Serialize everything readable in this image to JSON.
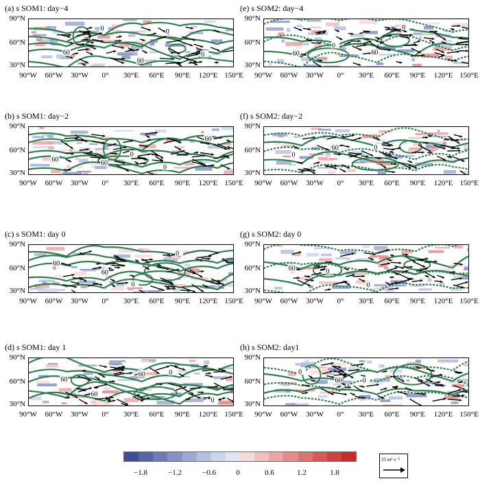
{
  "panels": [
    {
      "id": "a",
      "title": "(a) s SOM1: day−4",
      "contour_labels": [
        "60",
        "0",
        "60",
        "0",
        "0"
      ]
    },
    {
      "id": "e",
      "title": "(e) s SOM2: day−4",
      "contour_labels": [
        "60",
        "0",
        "60",
        "0"
      ]
    },
    {
      "id": "b",
      "title": "(b) s SOM1: day−2",
      "contour_labels": [
        "60",
        "60",
        "0",
        "0",
        "60"
      ]
    },
    {
      "id": "f",
      "title": "(f) s SOM2: day−2",
      "contour_labels": [
        "0",
        "60",
        "0"
      ]
    },
    {
      "id": "c",
      "title": "(c) s SOM1: day 0",
      "contour_labels": [
        "60",
        "60",
        "0",
        "0"
      ]
    },
    {
      "id": "g",
      "title": "(g) s SOM2: day 0",
      "contour_labels": [
        "60",
        "0",
        "0"
      ]
    },
    {
      "id": "d",
      "title": "(d) s SOM1: day 1",
      "contour_labels": [
        "60",
        "60",
        "60",
        "0",
        "0"
      ]
    },
    {
      "id": "h",
      "title": "(h) s SOM2: day1",
      "contour_labels": [
        "0",
        "60",
        "0"
      ]
    }
  ],
  "lat_labels": [
    "90°N",
    "60°N",
    "30°N"
  ],
  "lon_labels": [
    "90°W",
    "60°W",
    "30°W",
    "0°",
    "30°E",
    "60°E",
    "90°E",
    "120°E",
    "150°E"
  ],
  "colorbar": {
    "colors": [
      "#3f4e9a",
      "#5565a8",
      "#6d7cb6",
      "#8592c3",
      "#9eaad1",
      "#b6c0de",
      "#cdd5ea",
      "#e2e6f3",
      "#f7dada",
      "#f2c0c0",
      "#eca5a5",
      "#e68b8b",
      "#e07171",
      "#da5858",
      "#d43f3f",
      "#ce2828"
    ],
    "tick_labels": [
      "−1.8",
      "−1.2",
      "−0.6",
      "0",
      "0.6",
      "1.2",
      "1.8"
    ]
  },
  "reference_vector": {
    "label": "35 m²·s⁻²"
  },
  "style": {
    "contour_color": "#2e7d4f",
    "arrow_color": "#000000",
    "shade_blue": "#9eaad1",
    "shade_red": "#eca5a5"
  }
}
